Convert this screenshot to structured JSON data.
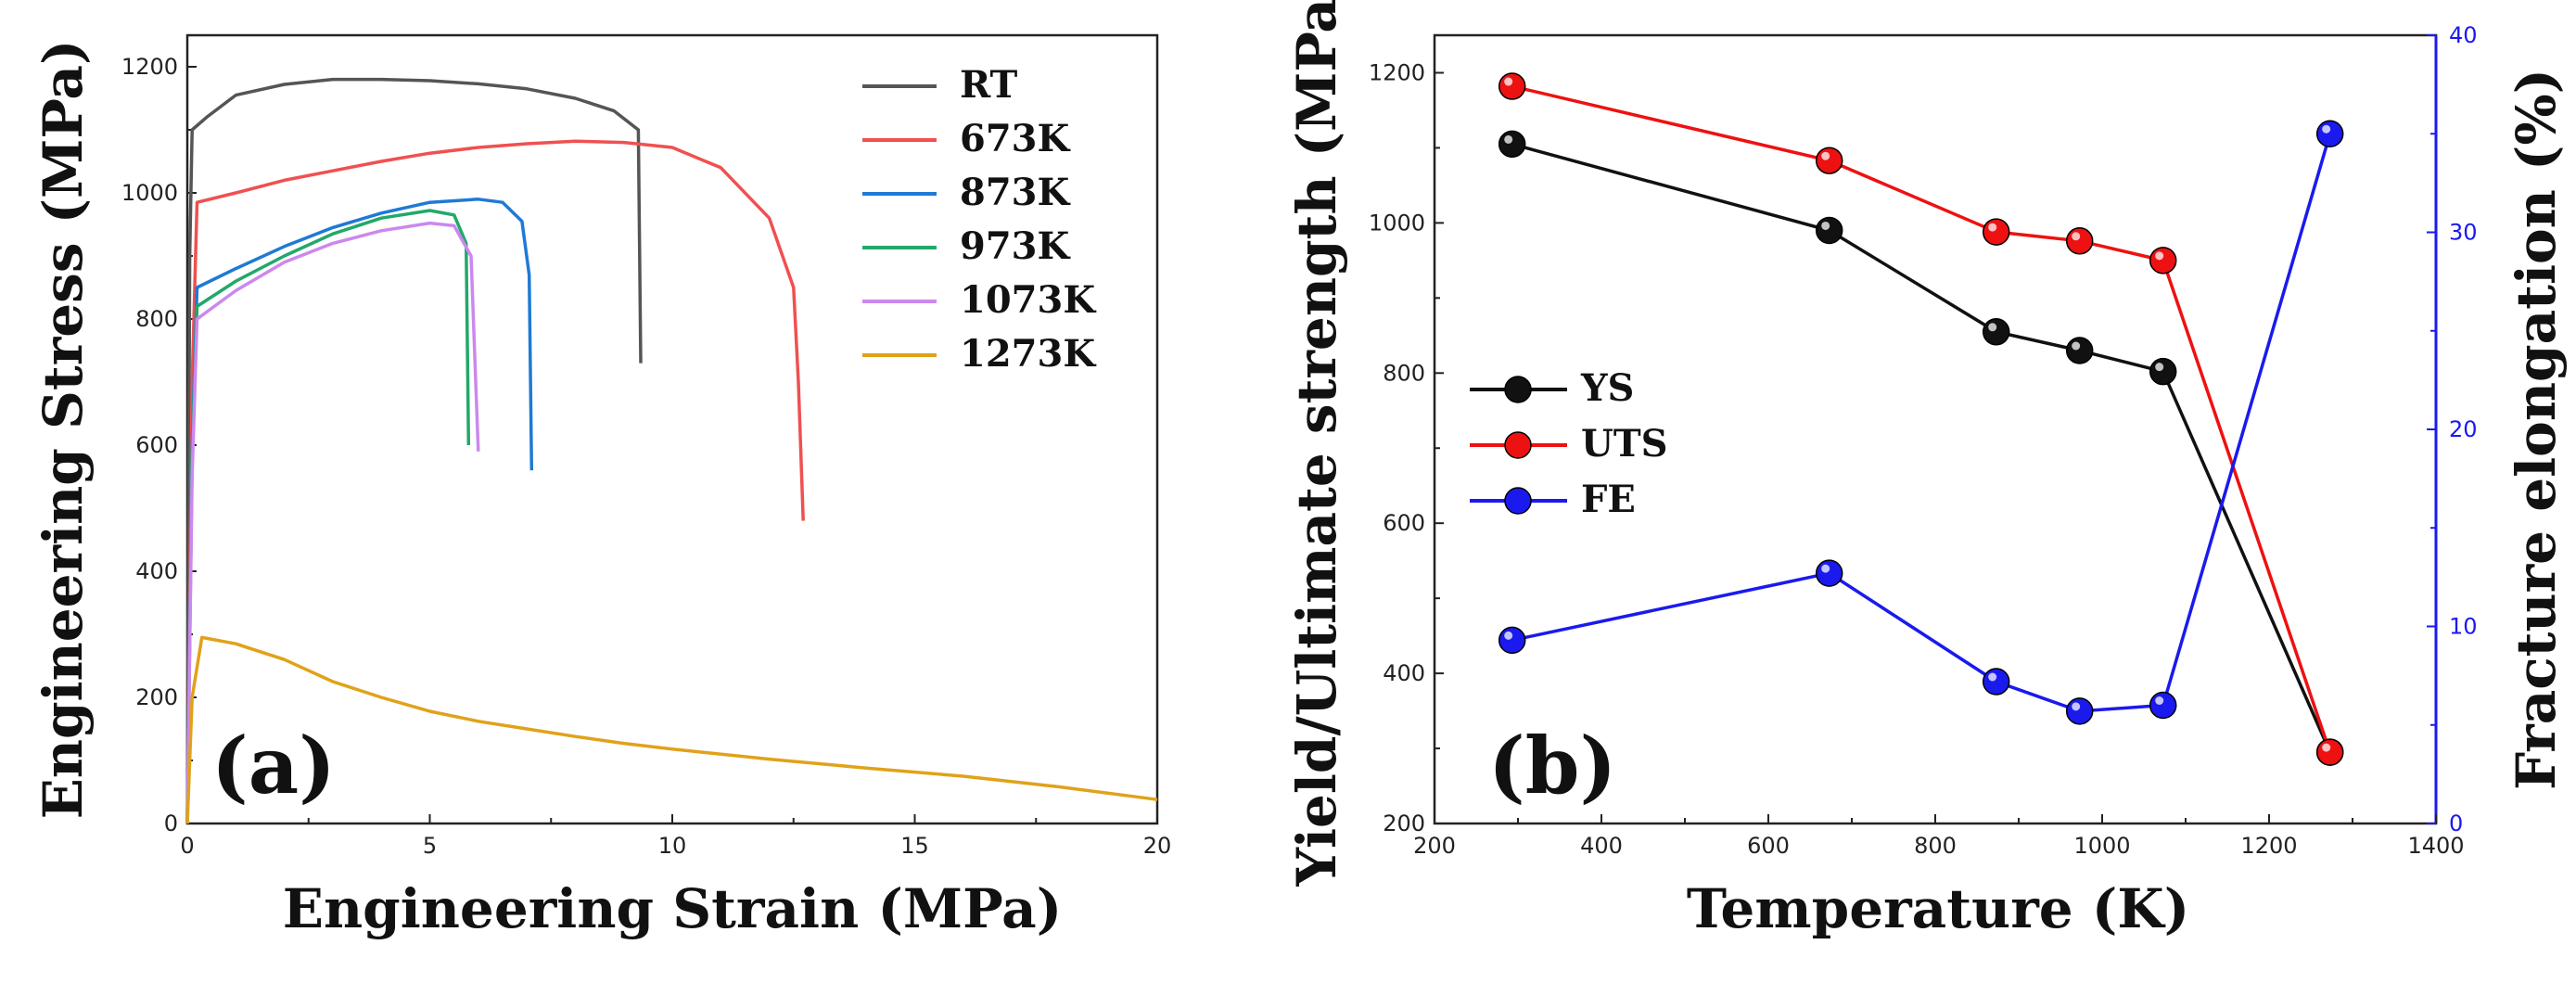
{
  "chart_data": [
    {
      "panel": "(a)",
      "type": "line",
      "xlabel": "Engineering Strain (MPa)",
      "ylabel": "Engineering Stress (MPa)",
      "xlim": [
        0,
        20
      ],
      "ylim": [
        0,
        1250
      ],
      "xticks": [
        "0",
        "5",
        "10",
        "15",
        "20"
      ],
      "yticks": [
        "0",
        "200",
        "400",
        "600",
        "800",
        "1000",
        "1200"
      ],
      "legend": [
        "RT",
        "673K",
        "873K",
        "973K",
        "1073K",
        "1273K"
      ],
      "series": [
        {
          "name": "RT",
          "color": "#555555",
          "points": [
            [
              0,
              0
            ],
            [
              0.05,
              900
            ],
            [
              0.1,
              1100
            ],
            [
              0.4,
              1120
            ],
            [
              1,
              1155
            ],
            [
              2,
              1172
            ],
            [
              3,
              1180
            ],
            [
              4,
              1180
            ],
            [
              5,
              1178
            ],
            [
              6,
              1173
            ],
            [
              7,
              1165
            ],
            [
              8,
              1150
            ],
            [
              8.8,
              1130
            ],
            [
              9.3,
              1100
            ],
            [
              9.35,
              730
            ]
          ]
        },
        {
          "name": "673K",
          "color": "#f05050",
          "points": [
            [
              0,
              0
            ],
            [
              0.1,
              700
            ],
            [
              0.2,
              985
            ],
            [
              1,
              1000
            ],
            [
              2,
              1020
            ],
            [
              3,
              1035
            ],
            [
              4,
              1050
            ],
            [
              5,
              1063
            ],
            [
              6,
              1072
            ],
            [
              7,
              1078
            ],
            [
              8,
              1082
            ],
            [
              9,
              1080
            ],
            [
              10,
              1072
            ],
            [
              11,
              1040
            ],
            [
              12,
              960
            ],
            [
              12.5,
              850
            ],
            [
              12.6,
              700
            ],
            [
              12.7,
              480
            ]
          ]
        },
        {
          "name": "873K",
          "color": "#1f7ad4",
          "points": [
            [
              0,
              0
            ],
            [
              0.1,
              600
            ],
            [
              0.2,
              850
            ],
            [
              1,
              880
            ],
            [
              2,
              915
            ],
            [
              3,
              945
            ],
            [
              4,
              968
            ],
            [
              5,
              985
            ],
            [
              6,
              990
            ],
            [
              6.5,
              985
            ],
            [
              6.9,
              955
            ],
            [
              7.05,
              870
            ],
            [
              7.1,
              560
            ]
          ]
        },
        {
          "name": "973K",
          "color": "#22a86a",
          "points": [
            [
              0,
              0
            ],
            [
              0.1,
              580
            ],
            [
              0.2,
              820
            ],
            [
              1,
              860
            ],
            [
              2,
              900
            ],
            [
              3,
              935
            ],
            [
              4,
              960
            ],
            [
              5,
              972
            ],
            [
              5.5,
              965
            ],
            [
              5.75,
              920
            ],
            [
              5.8,
              600
            ]
          ]
        },
        {
          "name": "1073K",
          "color": "#cc88ee",
          "points": [
            [
              0,
              0
            ],
            [
              0.1,
              550
            ],
            [
              0.2,
              800
            ],
            [
              1,
              845
            ],
            [
              2,
              890
            ],
            [
              3,
              920
            ],
            [
              4,
              940
            ],
            [
              5,
              952
            ],
            [
              5.5,
              948
            ],
            [
              5.85,
              900
            ],
            [
              6.0,
              590
            ]
          ]
        },
        {
          "name": "1273K",
          "color": "#e0a21a",
          "points": [
            [
              0,
              0
            ],
            [
              0.1,
              200
            ],
            [
              0.3,
              295
            ],
            [
              1,
              285
            ],
            [
              2,
              260
            ],
            [
              3,
              225
            ],
            [
              4,
              200
            ],
            [
              5,
              178
            ],
            [
              6,
              162
            ],
            [
              7,
              150
            ],
            [
              8,
              138
            ],
            [
              9,
              127
            ],
            [
              10,
              118
            ],
            [
              12,
              102
            ],
            [
              14,
              88
            ],
            [
              16,
              75
            ],
            [
              18,
              58
            ],
            [
              20,
              38
            ]
          ]
        }
      ]
    },
    {
      "panel": "(b)",
      "type": "line",
      "xlabel": "Temperature (K)",
      "ylabel": "Yield/Ultimate strength (MPa)",
      "y2label": "Fracture elongation (%)",
      "xlim": [
        200,
        1400
      ],
      "ylim": [
        200,
        1250
      ],
      "y2lim": [
        0,
        40
      ],
      "xticks": [
        "200",
        "400",
        "600",
        "800",
        "1000",
        "1200",
        "1400"
      ],
      "yticks": [
        "200",
        "400",
        "600",
        "800",
        "1000",
        "1200"
      ],
      "y2ticks": [
        "0",
        "10",
        "20",
        "30",
        "40"
      ],
      "legend": [
        "YS",
        "UTS",
        "FE"
      ],
      "series": [
        {
          "name": "YS",
          "axis": "left",
          "color": "#111111",
          "x": [
            293,
            673,
            873,
            973,
            1073,
            1273
          ],
          "y": [
            1105,
            990,
            855,
            830,
            802,
            295
          ]
        },
        {
          "name": "UTS",
          "axis": "left",
          "color": "#ee1111",
          "x": [
            293,
            673,
            873,
            973,
            1073,
            1273
          ],
          "y": [
            1182,
            1083,
            988,
            976,
            950,
            295
          ]
        },
        {
          "name": "FE",
          "axis": "right",
          "color": "#1a1aee",
          "x": [
            293,
            673,
            873,
            973,
            1073,
            1273
          ],
          "y": [
            9.3,
            12.7,
            7.2,
            5.7,
            6.0,
            35.0
          ]
        }
      ]
    }
  ]
}
